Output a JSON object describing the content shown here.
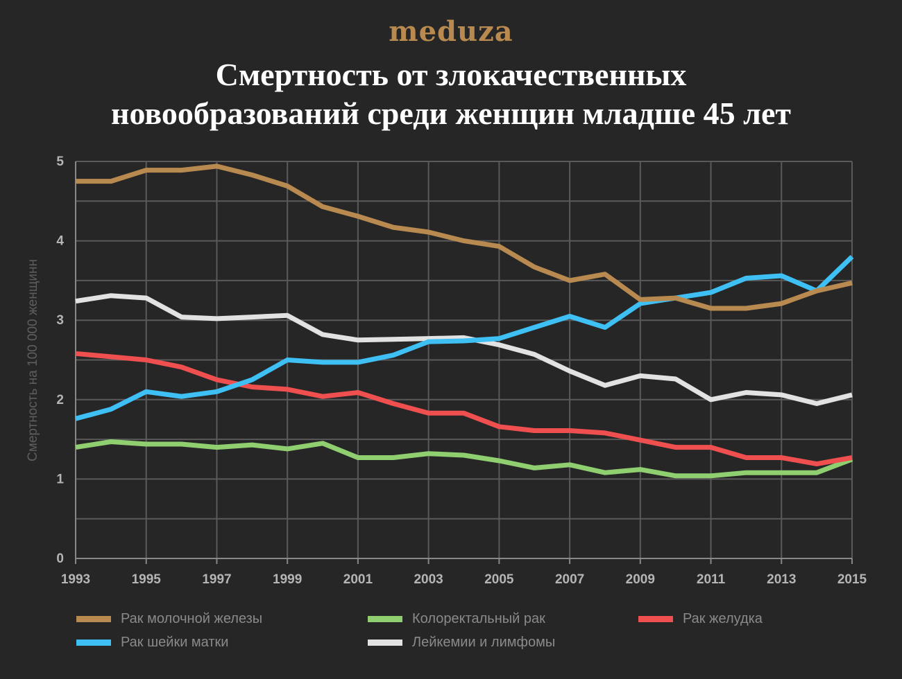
{
  "logo": "meduza",
  "title_line1": "Смертность от злокачественных",
  "title_line2": "новообразований среди женщин младше 45 лет",
  "chart_data": {
    "type": "line",
    "title": "Смертность от злокачественных новообразований среди женщин младше 45 лет",
    "xlabel": "",
    "ylabel": "Смертность на 100 000 женщинн",
    "xlim": [
      1993,
      2015
    ],
    "ylim": [
      0,
      5
    ],
    "grid": true,
    "legend_position": "bottom",
    "x": [
      1993,
      1994,
      1995,
      1996,
      1997,
      1998,
      1999,
      2000,
      2001,
      2002,
      2003,
      2004,
      2005,
      2006,
      2007,
      2008,
      2009,
      2010,
      2011,
      2012,
      2013,
      2014,
      2015
    ],
    "x_ticks": [
      "1993",
      "1995",
      "1997",
      "1999",
      "2001",
      "2003",
      "2005",
      "2007",
      "2009",
      "2011",
      "2013",
      "2015"
    ],
    "y_ticks": [
      "0",
      "1",
      "2",
      "3",
      "4",
      "5"
    ],
    "series": [
      {
        "name": "Рак молочной железы",
        "color": "#b88a4f",
        "values": [
          4.75,
          4.75,
          4.89,
          4.89,
          4.94,
          4.83,
          4.69,
          4.43,
          4.31,
          4.17,
          4.11,
          4.0,
          3.93,
          3.67,
          3.5,
          3.58,
          3.26,
          3.28,
          3.15,
          3.15,
          3.21,
          3.37,
          3.47
        ]
      },
      {
        "name": "Колоректальный рак",
        "color": "#8fcf70",
        "values": [
          1.4,
          1.47,
          1.44,
          1.44,
          1.4,
          1.43,
          1.38,
          1.45,
          1.27,
          1.27,
          1.32,
          1.3,
          1.23,
          1.14,
          1.18,
          1.08,
          1.12,
          1.04,
          1.04,
          1.08,
          1.08,
          1.08,
          1.25
        ]
      },
      {
        "name": "Рак желудка",
        "color": "#f04f4f",
        "values": [
          2.58,
          2.54,
          2.5,
          2.41,
          2.25,
          2.16,
          2.13,
          2.04,
          2.09,
          1.95,
          1.83,
          1.83,
          1.66,
          1.61,
          1.61,
          1.58,
          1.49,
          1.4,
          1.4,
          1.27,
          1.27,
          1.19,
          1.27
        ]
      },
      {
        "name": "Рак шейки матки",
        "color": "#3fc0f5",
        "values": [
          1.76,
          1.88,
          2.1,
          2.04,
          2.1,
          2.25,
          2.5,
          2.47,
          2.47,
          2.56,
          2.73,
          2.74,
          2.77,
          2.91,
          3.05,
          2.91,
          3.21,
          3.28,
          3.35,
          3.53,
          3.56,
          3.37,
          3.8
        ]
      },
      {
        "name": "Лейкемии и лимфомы",
        "color": "#e2e2e2",
        "values": [
          3.24,
          3.31,
          3.28,
          3.04,
          3.02,
          3.04,
          3.06,
          2.82,
          2.75,
          2.76,
          2.77,
          2.78,
          2.69,
          2.57,
          2.36,
          2.18,
          2.3,
          2.26,
          2.0,
          2.09,
          2.06,
          1.95,
          2.06
        ]
      }
    ]
  }
}
